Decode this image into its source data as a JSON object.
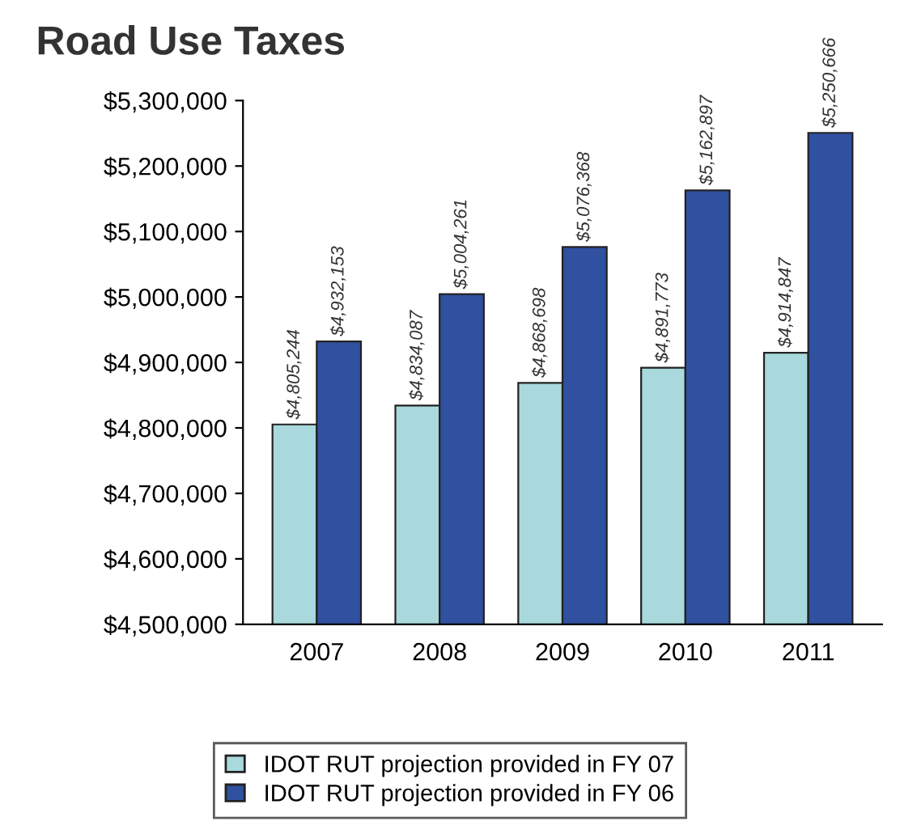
{
  "chart_data": {
    "type": "bar",
    "title": "Road Use Taxes",
    "categories": [
      "2007",
      "2008",
      "2009",
      "2010",
      "2011"
    ],
    "series": [
      {
        "name": "IDOT RUT projection provided in FY 07",
        "color": "#a9d9dc",
        "values": [
          4805244,
          4834087,
          4868698,
          4891773,
          4914847
        ],
        "value_labels": [
          "$4,805,244",
          "$4,834,087",
          "$4,868,698",
          "$4,891,773",
          "$4,914,847"
        ]
      },
      {
        "name": "IDOT RUT projection provided in FY 06",
        "color": "#3050a0",
        "values": [
          4932153,
          5004261,
          5076368,
          5162897,
          5250666
        ],
        "value_labels": [
          "$4,932,153",
          "$5,004,261",
          "$5,076,368",
          "$5,162,897",
          "$5,250,666"
        ]
      }
    ],
    "ylim": [
      4500000,
      5300000
    ],
    "yticks": [
      {
        "value": 4500000,
        "label": "$4,500,000"
      },
      {
        "value": 4600000,
        "label": "$4,600,000"
      },
      {
        "value": 4700000,
        "label": "$4,700,000"
      },
      {
        "value": 4800000,
        "label": "$4,800,000"
      },
      {
        "value": 4900000,
        "label": "$4,900,000"
      },
      {
        "value": 5000000,
        "label": "$5,000,000"
      },
      {
        "value": 5100000,
        "label": "$5,100,000"
      },
      {
        "value": 5200000,
        "label": "$5,200,000"
      },
      {
        "value": 5300000,
        "label": "$5,300,000"
      }
    ],
    "grid": false,
    "legend": "bottom"
  }
}
